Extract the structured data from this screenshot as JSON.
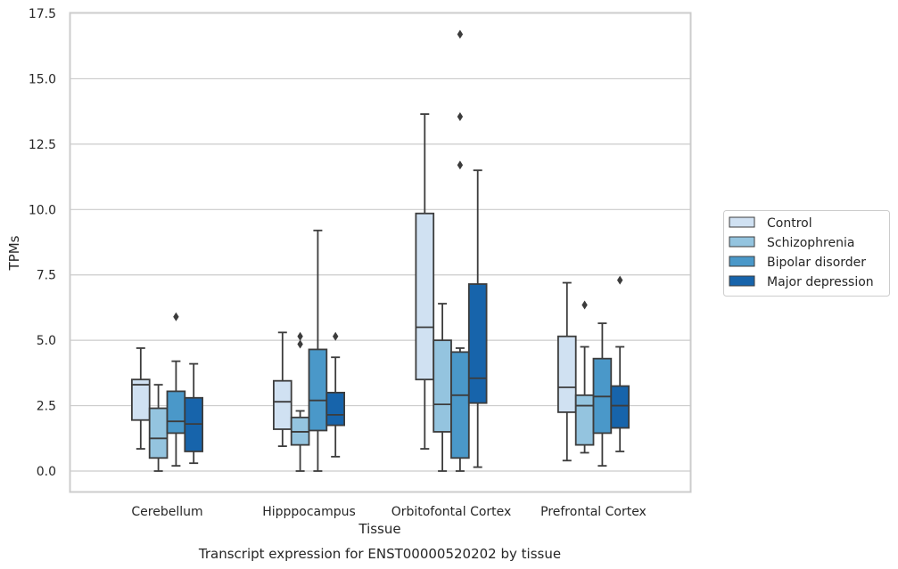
{
  "chart_data": {
    "type": "box",
    "xlabel": "Tissue",
    "ylabel": "TPMs",
    "caption": "Transcript expression for ENST00000520202 by tissue",
    "ylim": [
      -0.7,
      17.5
    ],
    "yticks": [
      "0.0",
      "2.5",
      "5.0",
      "7.5",
      "10.0",
      "12.5",
      "15.0",
      "17.5"
    ],
    "grid": true,
    "legend_position": "right",
    "categories": [
      "Cerebellum",
      "Hipppocampus",
      "Orbitofontal Cortex",
      "Prefrontal Cortex"
    ],
    "series": [
      {
        "name": "Control",
        "color": "#d0e1f2",
        "boxes": [
          {
            "whislo": 0.85,
            "q1": 1.95,
            "med": 3.3,
            "q3": 3.5,
            "whishi": 4.7,
            "fliers": []
          },
          {
            "whislo": 0.95,
            "q1": 1.6,
            "med": 2.65,
            "q3": 3.45,
            "whishi": 5.3,
            "fliers": []
          },
          {
            "whislo": 0.85,
            "q1": 3.5,
            "med": 5.5,
            "q3": 9.85,
            "whishi": 13.65,
            "fliers": []
          },
          {
            "whislo": 0.4,
            "q1": 2.25,
            "med": 3.2,
            "q3": 5.15,
            "whishi": 7.2,
            "fliers": []
          }
        ]
      },
      {
        "name": "Schizophrenia",
        "color": "#94c4df",
        "boxes": [
          {
            "whislo": 0.0,
            "q1": 0.5,
            "med": 1.25,
            "q3": 2.4,
            "whishi": 3.3,
            "fliers": []
          },
          {
            "whislo": 0.0,
            "q1": 1.0,
            "med": 1.5,
            "q3": 2.05,
            "whishi": 2.3,
            "fliers": [
              4.85,
              5.15
            ]
          },
          {
            "whislo": 0.0,
            "q1": 1.5,
            "med": 2.55,
            "q3": 5.0,
            "whishi": 6.4,
            "fliers": []
          },
          {
            "whislo": 0.7,
            "q1": 1.0,
            "med": 2.5,
            "q3": 2.9,
            "whishi": 4.75,
            "fliers": [
              6.35
            ]
          }
        ]
      },
      {
        "name": "Bipolar disorder",
        "color": "#4a98c9",
        "boxes": [
          {
            "whislo": 0.2,
            "q1": 1.45,
            "med": 1.9,
            "q3": 3.05,
            "whishi": 4.2,
            "fliers": [
              5.9
            ]
          },
          {
            "whislo": 0.0,
            "q1": 1.55,
            "med": 2.7,
            "q3": 4.65,
            "whishi": 9.2,
            "fliers": []
          },
          {
            "whislo": 0.0,
            "q1": 0.5,
            "med": 2.9,
            "q3": 4.55,
            "whishi": 4.7,
            "fliers": [
              11.7,
              13.55,
              16.7
            ]
          },
          {
            "whislo": 0.2,
            "q1": 1.45,
            "med": 2.85,
            "q3": 4.3,
            "whishi": 5.65,
            "fliers": []
          }
        ]
      },
      {
        "name": "Major depression",
        "color": "#1764ab",
        "boxes": [
          {
            "whislo": 0.3,
            "q1": 0.75,
            "med": 1.8,
            "q3": 2.8,
            "whishi": 4.1,
            "fliers": []
          },
          {
            "whislo": 0.55,
            "q1": 1.75,
            "med": 2.15,
            "q3": 3.0,
            "whishi": 4.35,
            "fliers": [
              5.15
            ]
          },
          {
            "whislo": 0.15,
            "q1": 2.6,
            "med": 3.55,
            "q3": 7.15,
            "whishi": 11.5,
            "fliers": []
          },
          {
            "whislo": 0.75,
            "q1": 1.65,
            "med": 2.5,
            "q3": 3.25,
            "whishi": 4.75,
            "fliers": [
              7.3
            ]
          }
        ]
      }
    ]
  }
}
